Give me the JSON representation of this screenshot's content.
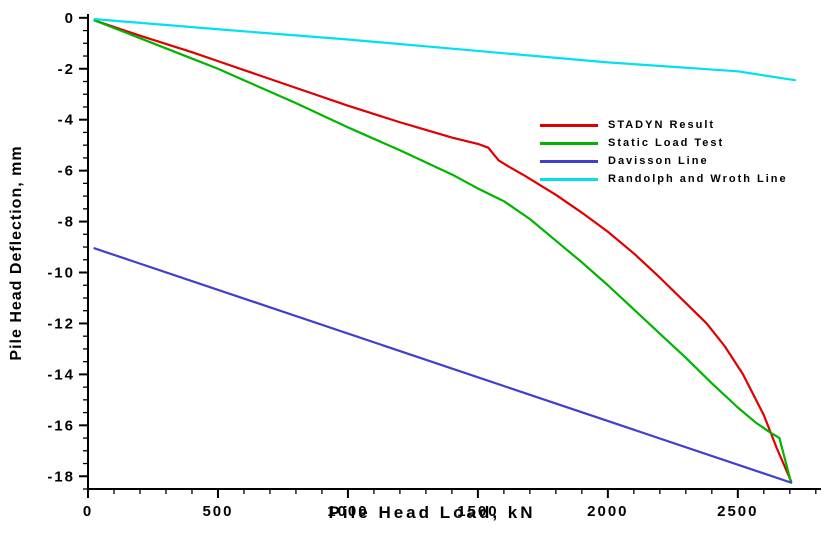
{
  "chart_data": {
    "type": "line",
    "title": "",
    "xlabel": "Pile Head Load, kN",
    "ylabel": "Pile Head Deflection, mm",
    "xlim": [
      0,
      2820
    ],
    "ylim": [
      -18.5,
      0.15
    ],
    "xticks": [
      0,
      500,
      1000,
      1500,
      2000,
      2500
    ],
    "yticks": [
      0,
      -2,
      -4,
      -6,
      -8,
      -10,
      -12,
      -14,
      -16,
      -18
    ],
    "x_minor_step": 100,
    "y_minor_step": 0.5,
    "grid": false,
    "legend_position": "center-right",
    "axis_color": "#000000",
    "background_color": "#ffffff",
    "series": [
      {
        "name": "STADYN Result",
        "color": "#e00000",
        "points": [
          [
            25,
            -0.1
          ],
          [
            200,
            -0.7
          ],
          [
            400,
            -1.35
          ],
          [
            500,
            -1.7
          ],
          [
            600,
            -2.05
          ],
          [
            800,
            -2.75
          ],
          [
            1000,
            -3.45
          ],
          [
            1200,
            -4.1
          ],
          [
            1400,
            -4.7
          ],
          [
            1500,
            -4.95
          ],
          [
            1540,
            -5.1
          ],
          [
            1580,
            -5.6
          ],
          [
            1620,
            -5.85
          ],
          [
            1680,
            -6.2
          ],
          [
            1800,
            -6.95
          ],
          [
            1900,
            -7.65
          ],
          [
            2000,
            -8.4
          ],
          [
            2100,
            -9.25
          ],
          [
            2200,
            -10.2
          ],
          [
            2300,
            -11.2
          ],
          [
            2380,
            -12.0
          ],
          [
            2450,
            -12.9
          ],
          [
            2520,
            -14.0
          ],
          [
            2600,
            -15.6
          ],
          [
            2650,
            -16.9
          ],
          [
            2705,
            -18.2
          ]
        ]
      },
      {
        "name": "Static Load Test",
        "color": "#00b400",
        "points": [
          [
            25,
            -0.1
          ],
          [
            200,
            -0.8
          ],
          [
            400,
            -1.6
          ],
          [
            500,
            -2.0
          ],
          [
            600,
            -2.45
          ],
          [
            800,
            -3.35
          ],
          [
            1000,
            -4.3
          ],
          [
            1200,
            -5.2
          ],
          [
            1400,
            -6.15
          ],
          [
            1500,
            -6.7
          ],
          [
            1560,
            -7.0
          ],
          [
            1600,
            -7.2
          ],
          [
            1700,
            -7.9
          ],
          [
            1800,
            -8.75
          ],
          [
            1900,
            -9.6
          ],
          [
            2000,
            -10.5
          ],
          [
            2100,
            -11.45
          ],
          [
            2200,
            -12.4
          ],
          [
            2300,
            -13.35
          ],
          [
            2400,
            -14.35
          ],
          [
            2500,
            -15.3
          ],
          [
            2570,
            -15.9
          ],
          [
            2620,
            -16.25
          ],
          [
            2660,
            -16.5
          ],
          [
            2705,
            -18.25
          ]
        ]
      },
      {
        "name": "Davisson Line",
        "color": "#4040cc",
        "points": [
          [
            25,
            -9.05
          ],
          [
            2705,
            -18.25
          ]
        ]
      },
      {
        "name": "Randolph and Wroth Line",
        "color": "#00e0f0",
        "points": [
          [
            25,
            -0.05
          ],
          [
            500,
            -0.45
          ],
          [
            1000,
            -0.85
          ],
          [
            1500,
            -1.3
          ],
          [
            2000,
            -1.75
          ],
          [
            2500,
            -2.1
          ],
          [
            2720,
            -2.45
          ]
        ]
      }
    ]
  }
}
